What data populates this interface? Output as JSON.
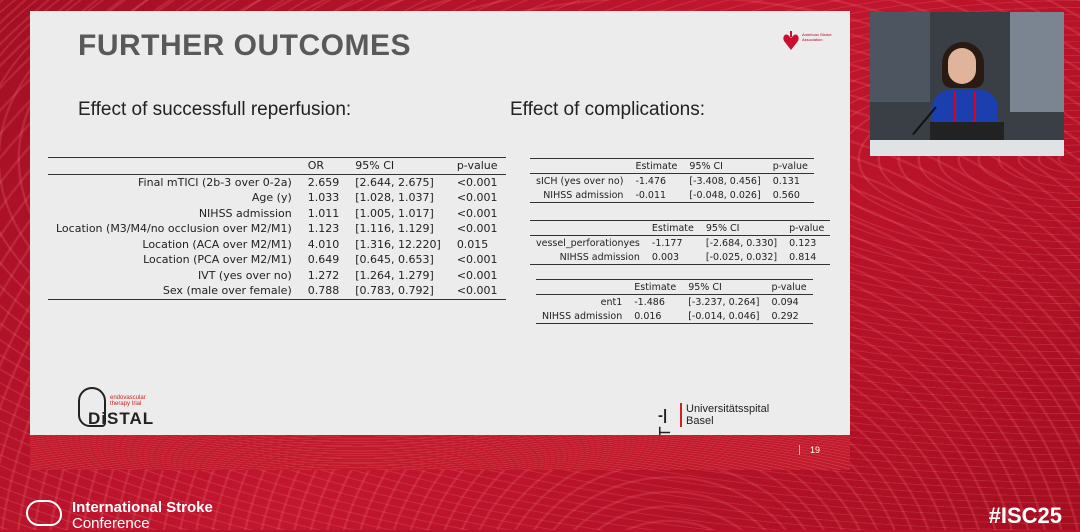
{
  "slide": {
    "title": "FURTHER OUTCOMES",
    "left_subtitle": "Effect of successfull reperfusion:",
    "right_subtitle": "Effect of complications:",
    "page_number": "19",
    "aha_logo_text": "American Stroke Association",
    "distal_logo": {
      "word": "DiSTAL",
      "tag": "endovascular therapy trial"
    },
    "hospital_logo": {
      "mark": "-|⊢",
      "line1": "Universitätsspital",
      "line2": "Basel"
    }
  },
  "reperfusion_table": {
    "headers": [
      "",
      "OR",
      "95% CI",
      "p-value"
    ],
    "rows": [
      [
        "Final mTICI (2b-3 over 0-2a)",
        "2.659",
        "[2.644, 2.675]",
        "<0.001"
      ],
      [
        "Age (y)",
        "1.033",
        "[1.028, 1.037]",
        "<0.001"
      ],
      [
        "NIHSS admission",
        "1.011",
        "[1.005, 1.017]",
        "<0.001"
      ],
      [
        "Location (M3/M4/no occlusion over M2/M1)",
        "1.123",
        "[1.116, 1.129]",
        "<0.001"
      ],
      [
        "Location (ACA over M2/M1)",
        "4.010",
        "[1.316, 12.220]",
        "0.015"
      ],
      [
        "Location (PCA over M2/M1)",
        "0.649",
        "[0.645, 0.653]",
        "<0.001"
      ],
      [
        "IVT (yes over no)",
        "1.272",
        "[1.264, 1.279]",
        "<0.001"
      ],
      [
        "Sex (male over female)",
        "0.788",
        "[0.783, 0.792]",
        "<0.001"
      ]
    ]
  },
  "complication_tables": [
    {
      "headers": [
        "",
        "Estimate",
        "95% CI",
        "p-value"
      ],
      "rows": [
        [
          "sICH (yes over no)",
          "-1.476",
          "[-3.408, 0.456]",
          "0.131"
        ],
        [
          "NIHSS admission",
          "-0.011",
          "[-0.048, 0.026]",
          "0.560"
        ]
      ]
    },
    {
      "headers": [
        "",
        "Estimate",
        "95% CI",
        "p-value"
      ],
      "rows": [
        [
          "vessel_perforationyes",
          "-1.177",
          "[-2.684, 0.330]",
          "0.123"
        ],
        [
          "NIHSS admission",
          "0.003",
          "[-0.025, 0.032]",
          "0.814"
        ]
      ]
    },
    {
      "headers": [
        "",
        "Estimate",
        "95% CI",
        "p-value"
      ],
      "rows": [
        [
          "ent1",
          "-1.486",
          "[-3.237, 0.264]",
          "0.094"
        ],
        [
          "NIHSS admission",
          "0.016",
          "[-0.014, 0.046]",
          "0.292"
        ]
      ]
    }
  ],
  "conference": {
    "name_line1": "International Stroke",
    "name_line2": "Conference",
    "hashtag": "#ISC25"
  },
  "colors": {
    "brand_red": "#c11a2c",
    "slide_bg": "#ececec",
    "title_gray": "#595959"
  }
}
